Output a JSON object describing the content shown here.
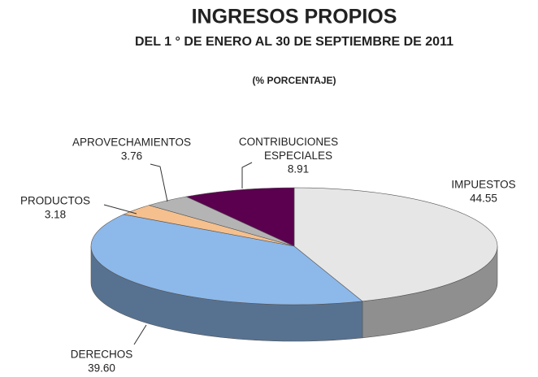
{
  "chart_data": {
    "type": "pie",
    "title": "INGRESOS PROPIOS",
    "subtitle": "DEL 1 ° DE ENERO AL 30 DE SEPTIEMBRE DE 2011",
    "note": "(% PORCENTAJE)",
    "categories": [
      "IMPUESTOS",
      "DERECHOS",
      "PRODUCTOS",
      "APROVECHAMIENTOS",
      "CONTRIBUCIONES ESPECIALES"
    ],
    "values": [
      44.55,
      39.6,
      3.18,
      3.76,
      8.91
    ],
    "value_labels": [
      "44.55",
      "39.60",
      "3.18",
      "3.76",
      "8.91"
    ],
    "colors": [
      "#e6e6e6",
      "#8db8ea",
      "#f5c08e",
      "#b4b4b4",
      "#5a004e"
    ]
  }
}
